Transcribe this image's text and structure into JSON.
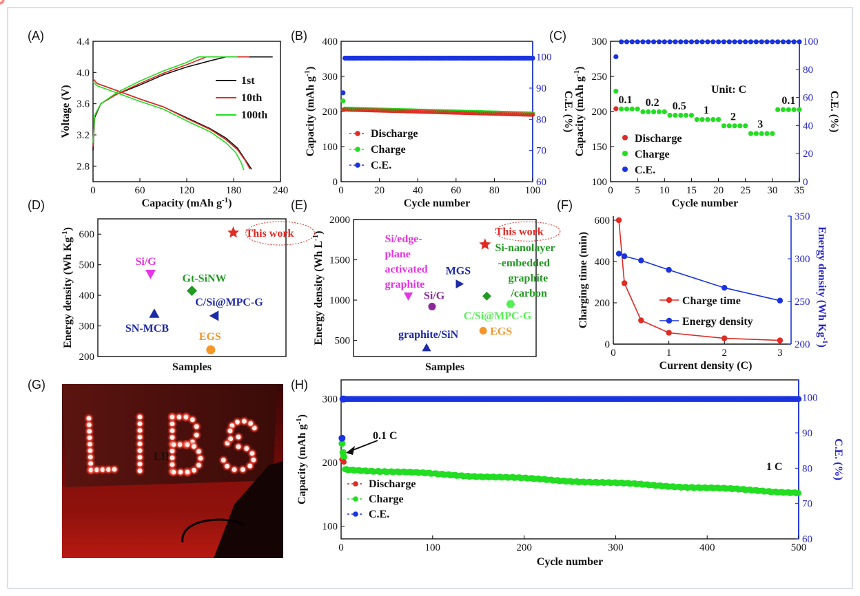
{
  "colors": {
    "discharge": "#e02a24",
    "charge": "#22dd22",
    "ce": "#1a33e0",
    "black": "#111111",
    "magenta": "#e633e6",
    "green": "#229922",
    "navy": "#1c2aa8",
    "orange": "#f5962a",
    "red": "#e02a24",
    "lightgreen": "#55ee55"
  },
  "chart_data": [
    {
      "panel": "(A)",
      "type": "line",
      "xlabel": "Capacity (mAh g",
      "xlabel_sup": "-1",
      "xlabel_end": ")",
      "ylabel": "Voltage (V)",
      "xlim": [
        0,
        240
      ],
      "ylim": [
        2.6,
        4.4
      ],
      "xticks": [
        0,
        60,
        120,
        180,
        240
      ],
      "yticks": [
        2.8,
        3.2,
        3.6,
        4.0,
        4.4
      ],
      "ytick_labels": [
        "2.8",
        "3.2",
        "3.6",
        "4.0",
        "4.4"
      ],
      "legend_position": "right",
      "series": [
        {
          "name": "1st",
          "color": "#111111",
          "charge": [
            [
              0,
              3.0
            ],
            [
              2,
              3.42
            ],
            [
              10,
              3.6
            ],
            [
              30,
              3.72
            ],
            [
              60,
              3.84
            ],
            [
              90,
              3.97
            ],
            [
              120,
              4.07
            ],
            [
              150,
              4.15
            ],
            [
              170,
              4.2
            ],
            [
              230,
              4.2
            ]
          ],
          "discharge": [
            [
              0,
              3.92
            ],
            [
              5,
              3.86
            ],
            [
              30,
              3.77
            ],
            [
              60,
              3.66
            ],
            [
              90,
              3.56
            ],
            [
              120,
              3.42
            ],
            [
              150,
              3.28
            ],
            [
              170,
              3.16
            ],
            [
              185,
              3.03
            ],
            [
              195,
              2.88
            ],
            [
              203,
              2.76
            ]
          ]
        },
        {
          "name": "10th",
          "color": "#e02a24",
          "charge": [
            [
              0,
              3.05
            ],
            [
              2,
              3.44
            ],
            [
              10,
              3.6
            ],
            [
              30,
              3.72
            ],
            [
              60,
              3.86
            ],
            [
              90,
              3.99
            ],
            [
              120,
              4.1
            ],
            [
              145,
              4.2
            ],
            [
              200,
              4.2
            ]
          ],
          "discharge": [
            [
              0,
              3.92
            ],
            [
              5,
              3.86
            ],
            [
              30,
              3.77
            ],
            [
              60,
              3.66
            ],
            [
              90,
              3.56
            ],
            [
              120,
              3.41
            ],
            [
              150,
              3.27
            ],
            [
              170,
              3.14
            ],
            [
              185,
              3.01
            ],
            [
              195,
              2.87
            ],
            [
              201,
              2.76
            ]
          ]
        },
        {
          "name": "100th",
          "color": "#22dd22",
          "charge": [
            [
              0,
              3.1
            ],
            [
              2,
              3.45
            ],
            [
              10,
              3.6
            ],
            [
              30,
              3.74
            ],
            [
              60,
              3.89
            ],
            [
              90,
              4.02
            ],
            [
              120,
              4.13
            ],
            [
              135,
              4.2
            ],
            [
              185,
              4.2
            ]
          ],
          "discharge": [
            [
              0,
              3.88
            ],
            [
              5,
              3.83
            ],
            [
              30,
              3.74
            ],
            [
              60,
              3.63
            ],
            [
              90,
              3.53
            ],
            [
              120,
              3.38
            ],
            [
              150,
              3.24
            ],
            [
              170,
              3.1
            ],
            [
              183,
              2.97
            ],
            [
              190,
              2.84
            ],
            [
              193,
              2.75
            ]
          ]
        }
      ]
    },
    {
      "panel": "(B)",
      "type": "scatter",
      "xlabel": "Cycle number",
      "ylabel": "Capacity (mAh g",
      "ylabel_sup": "-1",
      "ylabel_end": ")",
      "y2label": "C.E. (%)",
      "xlim": [
        0,
        100
      ],
      "ylim": [
        0,
        400
      ],
      "y2lim": [
        60,
        105
      ],
      "xticks": [
        0,
        20,
        40,
        60,
        80,
        100
      ],
      "yticks": [
        0,
        100,
        200,
        300,
        400
      ],
      "y2ticks": [
        60,
        70,
        80,
        90,
        100
      ],
      "legend_position": "bottom-left",
      "series": [
        {
          "name": "Discharge",
          "marker": "circle",
          "color": "#e02a24",
          "first": 205,
          "last": 191,
          "n": 100
        },
        {
          "name": "Charge",
          "marker": "circle",
          "color": "#22dd22",
          "first": 230,
          "last": 193,
          "n": 100
        },
        {
          "name": "C.E.",
          "marker": "circle",
          "color": "#1a33e0",
          "first": 88.5,
          "value": 99.6,
          "n": 100
        }
      ]
    },
    {
      "panel": "(C)",
      "type": "scatter",
      "xlabel": "Cycle number",
      "ylabel": "Capacity (mAh g",
      "ylabel_sup": "-1",
      "ylabel_end": ")",
      "y2label": "C.E. (%)",
      "xlim": [
        0,
        35
      ],
      "ylim": [
        100,
        300
      ],
      "y2lim": [
        0,
        100
      ],
      "xticks": [
        0,
        5,
        10,
        15,
        20,
        25,
        30,
        35
      ],
      "yticks": [
        100,
        150,
        200,
        250,
        300
      ],
      "y2ticks": [
        0,
        20,
        40,
        60,
        80,
        100
      ],
      "unit_note": "Unit: C",
      "legend_position": "bottom-left",
      "rates": [
        {
          "label": "0.1",
          "from": 1,
          "to": 5,
          "cap": 203
        },
        {
          "label": "0.2",
          "from": 6,
          "to": 10,
          "cap": 199
        },
        {
          "label": "0.5",
          "from": 11,
          "to": 15,
          "cap": 194
        },
        {
          "label": "1",
          "from": 16,
          "to": 20,
          "cap": 188
        },
        {
          "label": "2",
          "from": 21,
          "to": 25,
          "cap": 179
        },
        {
          "label": "3",
          "from": 26,
          "to": 30,
          "cap": 168
        },
        {
          "label": "0.1",
          "from": 31,
          "to": 35,
          "cap": 202
        }
      ],
      "first_cycle": {
        "discharge": 204,
        "charge": 229,
        "ce": 89
      },
      "ce_value": 99.6,
      "series": [
        {
          "name": "Discharge",
          "marker": "circle",
          "color": "#e02a24"
        },
        {
          "name": "Charge",
          "marker": "circle",
          "color": "#22dd22"
        },
        {
          "name": "C.E.",
          "marker": "circle",
          "color": "#1a33e0"
        }
      ]
    },
    {
      "panel": "(D)",
      "type": "scatter",
      "xlabel": "Samples",
      "ylabel": "Energy density (Wh Kg",
      "ylabel_sup": "-1",
      "ylabel_end": ")",
      "ylim": [
        200,
        650
      ],
      "yticks": [
        200,
        300,
        400,
        500,
        600
      ],
      "points": [
        {
          "label": "This work",
          "x": 0.72,
          "y": 605,
          "marker": "star",
          "color": "#e02a24",
          "circled": true
        },
        {
          "label": "Si/G",
          "x": 0.28,
          "y": 470,
          "marker": "triangle-down",
          "color": "#e633e6"
        },
        {
          "label": "Gt-SiNW",
          "x": 0.5,
          "y": 415,
          "marker": "diamond",
          "color": "#229922"
        },
        {
          "label": "C/Si@MPC-G",
          "x": 0.62,
          "y": 333,
          "marker": "triangle-left",
          "color": "#1c2aa8"
        },
        {
          "label": "SN-MCB",
          "x": 0.3,
          "y": 340,
          "marker": "triangle-up",
          "color": "#1c2aa8"
        },
        {
          "label": "EGS",
          "x": 0.6,
          "y": 222,
          "marker": "circle",
          "color": "#f5962a"
        }
      ]
    },
    {
      "panel": "(E)",
      "type": "scatter",
      "xlabel": "Samples",
      "ylabel": "Energy density (Wh L",
      "ylabel_sup": "-1",
      "ylabel_end": ")",
      "ylim": [
        300,
        2000
      ],
      "yticks": [
        500,
        1000,
        1500,
        2000
      ],
      "points": [
        {
          "label": "This work",
          "x": 0.72,
          "y": 1690,
          "marker": "star",
          "color": "#e02a24",
          "circled": true
        },
        {
          "label": "Si-nanolayer -embedded graphite /carbon",
          "x": 0.73,
          "y": 1050,
          "marker": "diamond",
          "color": "#229922"
        },
        {
          "label": "Si/edge- plane activated graphite",
          "x": 0.3,
          "y": 1050,
          "marker": "triangle-down",
          "color": "#e633e6"
        },
        {
          "label": "MGS",
          "x": 0.58,
          "y": 1200,
          "marker": "triangle-right",
          "color": "#1c2aa8"
        },
        {
          "label": "Si/G",
          "x": 0.43,
          "y": 920,
          "marker": "circle",
          "color": "#8a2a9a"
        },
        {
          "label": "C/Si@MPC-G",
          "x": 0.86,
          "y": 950,
          "marker": "hexagon",
          "color": "#55ee55"
        },
        {
          "label": "EGS",
          "x": 0.71,
          "y": 620,
          "marker": "circle",
          "color": "#f5962a"
        },
        {
          "label": "graphite/SiN",
          "x": 0.4,
          "y": 410,
          "marker": "triangle-up",
          "color": "#1c2aa8"
        }
      ]
    },
    {
      "panel": "(F)",
      "type": "line",
      "xlabel": "Current density (C)",
      "ylabel": "Charging time (min)",
      "y2label": "Energy density (Wh Kg",
      "y2label_sup": "-1",
      "y2label_end": ")",
      "xlim": [
        0,
        3.2
      ],
      "ylim": [
        0,
        620
      ],
      "y2lim": [
        200,
        350
      ],
      "xticks": [
        0,
        1,
        2,
        3
      ],
      "yticks": [
        0,
        200,
        400,
        600
      ],
      "y2ticks": [
        200,
        250,
        300,
        350
      ],
      "legend_position": "center-right",
      "series": [
        {
          "name": "Charge time",
          "color": "#e02a24",
          "axis": "left",
          "x": [
            0.1,
            0.2,
            0.5,
            1,
            2,
            3
          ],
          "y": [
            600,
            295,
            115,
            55,
            28,
            18
          ]
        },
        {
          "name": "Energy density",
          "color": "#1a33e0",
          "axis": "right",
          "x": [
            0.1,
            0.2,
            0.5,
            1,
            2,
            3
          ],
          "y": [
            306,
            303,
            298,
            287,
            266,
            251
          ]
        }
      ]
    },
    {
      "panel": "(H)",
      "type": "scatter",
      "xlabel": "Cycle number",
      "ylabel": "Capacity (mAh g",
      "ylabel_sup": "-1",
      "ylabel_end": ")",
      "y2label": "C.E. (%)",
      "xlim": [
        0,
        500
      ],
      "ylim": [
        80,
        330
      ],
      "y2lim": [
        60,
        105
      ],
      "xticks": [
        0,
        100,
        200,
        300,
        400,
        500
      ],
      "yticks": [
        100,
        200,
        300
      ],
      "y2ticks": [
        60,
        70,
        80,
        90,
        100
      ],
      "legend_position": "bottom-left",
      "annotations": [
        {
          "text": "0.1 C"
        },
        {
          "text": "1 C"
        }
      ],
      "series": [
        {
          "name": "Discharge",
          "marker": "circle",
          "color": "#e02a24",
          "initial": [
            205,
            203,
            201
          ],
          "start": 188,
          "end": 151
        },
        {
          "name": "Charge",
          "marker": "circle",
          "color": "#22dd22",
          "initial": [
            230,
            216,
            209
          ],
          "start": 189,
          "end": 152
        },
        {
          "name": "C.E.",
          "marker": "circle",
          "color": "#1a33e0",
          "first": 88.5,
          "value": 99.6
        }
      ]
    }
  ],
  "photo": {
    "panel": "(G)",
    "sign_text": "LIBs",
    "description_name": "led-libs-sign-photo"
  }
}
